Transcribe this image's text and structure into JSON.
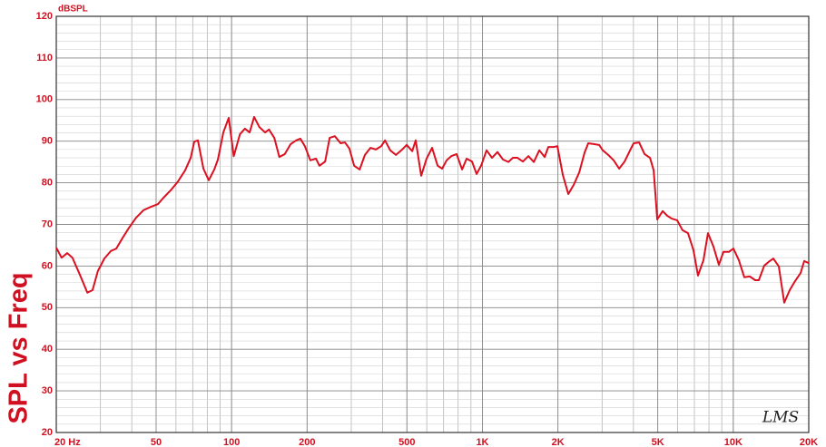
{
  "chart_data": {
    "type": "line",
    "title": "SPL vs Freq",
    "y_label": "dBSPL",
    "annotation": "LMS",
    "xscale": "log",
    "grid": true,
    "minor_grid": true,
    "color": "#dc1020",
    "xlim": [
      20,
      20000
    ],
    "ylim": [
      20,
      120
    ],
    "yticks": [
      20,
      30,
      40,
      50,
      60,
      70,
      80,
      90,
      100,
      110,
      120
    ],
    "xticks": [
      {
        "value": 20,
        "label": "20  Hz"
      },
      50,
      100,
      200,
      500,
      {
        "value": 1000,
        "label": "1K"
      },
      {
        "value": 2000,
        "label": "2K"
      },
      {
        "value": 5000,
        "label": "5K"
      },
      {
        "value": 10000,
        "label": "10K"
      },
      {
        "value": 20000,
        "label": "20K"
      }
    ],
    "x": [
      20,
      21,
      22.1,
      23.2,
      24.8,
      26.6,
      27.9,
      29.3,
      31.1,
      33,
      34.7,
      36.8,
      39,
      41.6,
      44.5,
      47.6,
      50.9,
      53.5,
      57.2,
      61.1,
      65.3,
      68.7,
      71,
      73.4,
      77.2,
      81.1,
      85.3,
      88.2,
      92.7,
      97.4,
      102,
      108,
      113,
      118,
      123,
      129,
      136,
      141,
      148,
      155,
      163,
      172,
      181,
      188,
      196,
      206,
      217,
      224,
      236,
      246,
      258,
      272,
      283,
      295,
      308,
      324,
      340,
      358,
      376,
      395,
      409,
      429,
      452,
      475,
      499,
      525,
      542,
      570,
      599,
      630,
      663,
      691,
      720,
      751,
      789,
      830,
      865,
      909,
      948,
      988,
      1039,
      1092,
      1148,
      1207,
      1269,
      1323,
      1379,
      1450,
      1525,
      1603,
      1685,
      1771,
      1831,
      1925,
      1990,
      2092,
      2200,
      2312,
      2432,
      2556,
      2642,
      2778,
      2920,
      3020,
      3174,
      3336,
      3508,
      3688,
      3878,
      4008,
      4214,
      4430,
      4658,
      4816,
      4978,
      5232,
      5450,
      5682,
      5973,
      6280,
      6602,
      6940,
      7236,
      7607,
      7929,
      8336,
      8763,
      9138,
      9607,
      10015,
      10528,
      11068,
      11636,
      12232,
      12646,
      13295,
      13977,
      14450,
      15192,
      15970,
      16790,
      17650,
      18554,
      19184,
      20000
    ],
    "values": [
      64.4,
      62.0,
      63.1,
      62,
      58,
      53.6,
      54.2,
      58.8,
      61.8,
      63.6,
      64.2,
      66.8,
      69.2,
      71.6,
      73.4,
      74.2,
      74.9,
      76.4,
      78.2,
      80.3,
      83,
      86,
      89.9,
      90.2,
      83.4,
      80.6,
      83.2,
      85.6,
      92.1,
      95.6,
      86.4,
      91.7,
      93,
      92.1,
      95.8,
      93.4,
      92.1,
      92.8,
      90.8,
      86.2,
      86.9,
      89.3,
      90.2,
      90.6,
      88.8,
      85.4,
      85.8,
      84.1,
      85.1,
      90.8,
      91.2,
      89.5,
      89.7,
      88.2,
      84.1,
      83.2,
      86.7,
      88.4,
      88,
      88.8,
      90.2,
      87.8,
      86.7,
      87.8,
      89.1,
      87.6,
      90.2,
      81.7,
      85.8,
      88.4,
      84.1,
      83.4,
      85.4,
      86.4,
      86.9,
      83.2,
      85.8,
      85.1,
      82.1,
      84.1,
      87.8,
      86,
      87.4,
      85.6,
      85,
      86,
      86,
      85.1,
      86.4,
      85,
      87.8,
      86.2,
      88.6,
      88.6,
      88.8,
      81.9,
      77.3,
      79.5,
      82.5,
      87.3,
      89.5,
      89.3,
      89.1,
      87.8,
      86.7,
      85.4,
      83.4,
      85.1,
      87.8,
      89.5,
      89.7,
      86.9,
      86,
      83,
      71.2,
      73.2,
      72.1,
      71.4,
      71,
      68.6,
      67.9,
      63.8,
      57.7,
      61.4,
      67.9,
      64.7,
      60.3,
      63.4,
      63.4,
      64.2,
      61.4,
      57.3,
      57.5,
      56.6,
      56.6,
      60.1,
      61.2,
      61.8,
      59.9,
      51.2,
      54.2,
      56.4,
      58.3,
      61.2,
      60.7
    ]
  }
}
